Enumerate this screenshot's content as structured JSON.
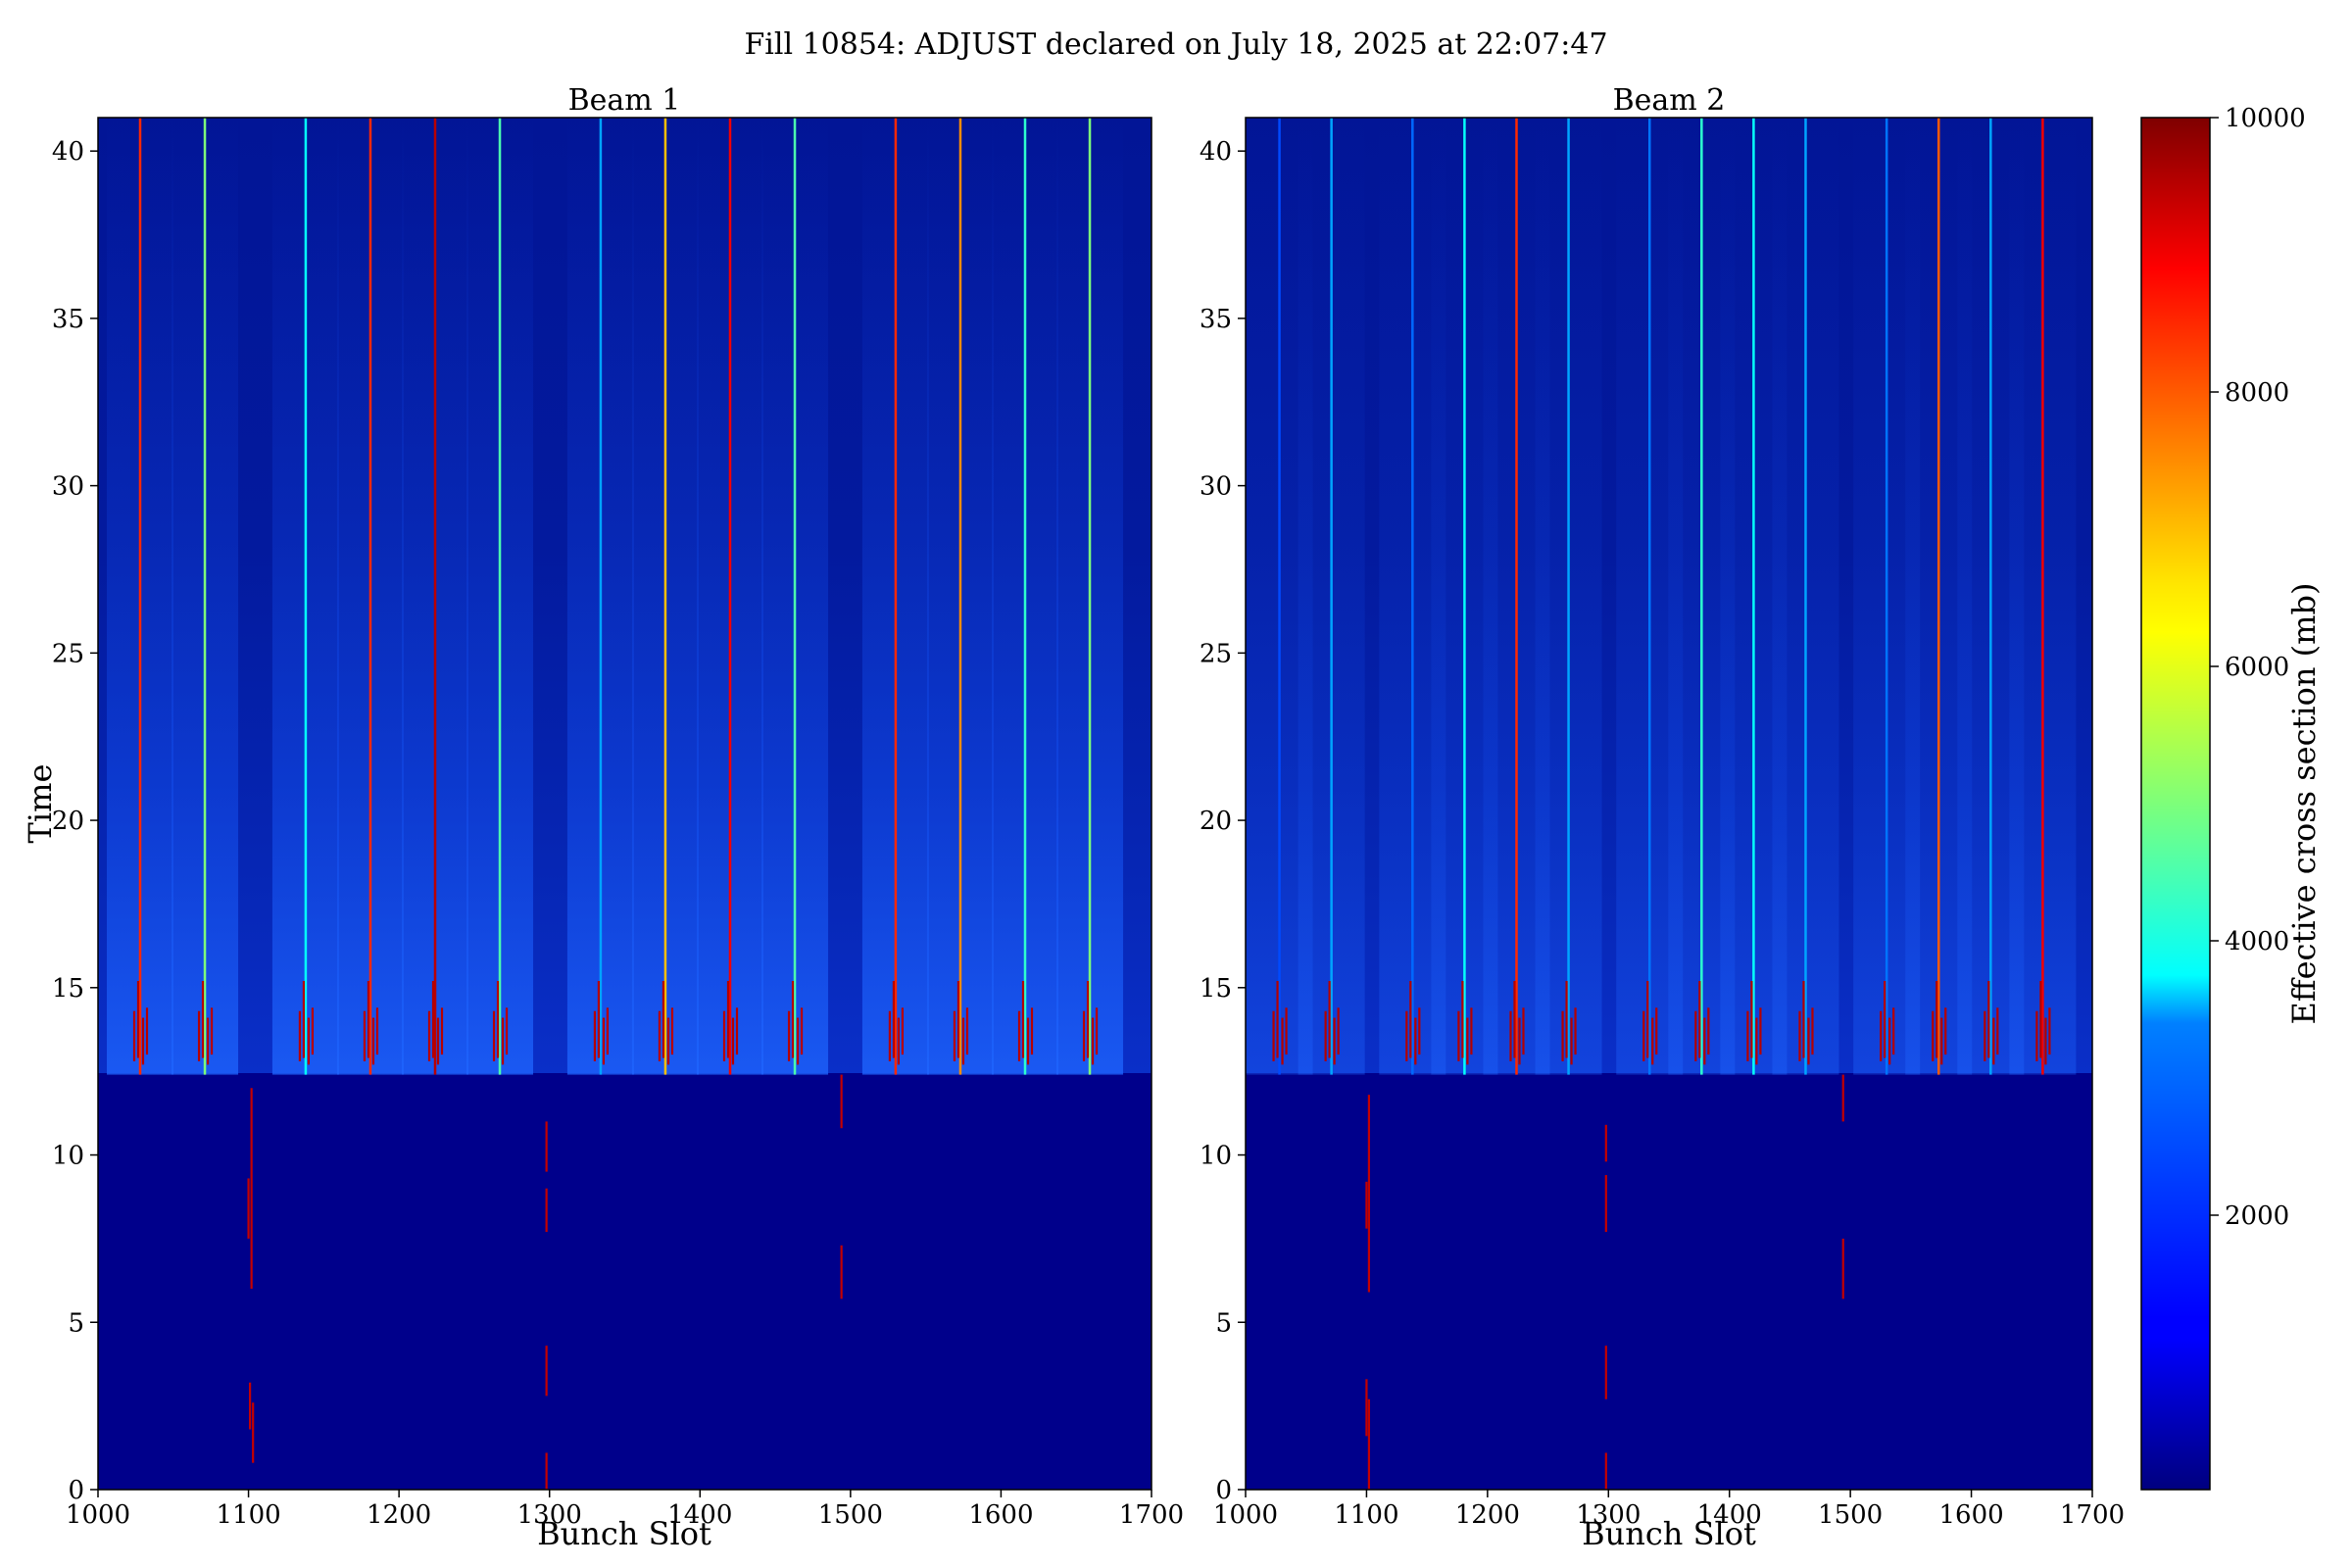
{
  "figure_title": "Fill 10854: ADJUST declared on July 18, 2025 at 22:07:47",
  "colormap": "jet",
  "colors": {
    "background_low": "#00008b",
    "beam_region": "#0a2fc8",
    "hot": "#b50000"
  },
  "chart_data": [
    {
      "type": "heatmap",
      "title": "Beam 1",
      "xlabel": "Bunch Slot",
      "ylabel": "Time",
      "xlim": [
        1000,
        1700
      ],
      "ylim": [
        0,
        41
      ],
      "xticks": [
        1000,
        1100,
        1200,
        1300,
        1400,
        1500,
        1600,
        1700
      ],
      "yticks": [
        0,
        5,
        10,
        15,
        20,
        25,
        30,
        35,
        40
      ],
      "transition_time": 12.4,
      "bright_lines": [
        {
          "x": 1028,
          "value": 8500
        },
        {
          "x": 1071,
          "value": 5000
        },
        {
          "x": 1138,
          "value": 3800
        },
        {
          "x": 1181,
          "value": 8500
        },
        {
          "x": 1224,
          "value": 9500
        },
        {
          "x": 1267,
          "value": 4500
        },
        {
          "x": 1334,
          "value": 3500
        },
        {
          "x": 1377,
          "value": 7000
        },
        {
          "x": 1420,
          "value": 9000
        },
        {
          "x": 1463,
          "value": 4500
        },
        {
          "x": 1530,
          "value": 8500
        },
        {
          "x": 1573,
          "value": 7500
        },
        {
          "x": 1616,
          "value": 4200
        },
        {
          "x": 1659,
          "value": 5000
        }
      ],
      "early_spikes": [
        {
          "x": 1100,
          "t0": 7.5,
          "t1": 9.3
        },
        {
          "x": 1102,
          "t0": 6.0,
          "t1": 12.0
        },
        {
          "x": 1101,
          "t0": 1.8,
          "t1": 3.2
        },
        {
          "x": 1103,
          "t0": 0.8,
          "t1": 2.6
        },
        {
          "x": 1298,
          "t0": 9.5,
          "t1": 11.0
        },
        {
          "x": 1298,
          "t0": 7.7,
          "t1": 9.0
        },
        {
          "x": 1298,
          "t0": 2.8,
          "t1": 4.3
        },
        {
          "x": 1298,
          "t0": 0.0,
          "t1": 1.1
        },
        {
          "x": 1494,
          "t0": 10.8,
          "t1": 12.4
        },
        {
          "x": 1494,
          "t0": 5.7,
          "t1": 7.3
        }
      ]
    },
    {
      "type": "heatmap",
      "title": "Beam 2",
      "xlabel": "Bunch Slot",
      "ylabel": "",
      "xlim": [
        1000,
        1700
      ],
      "ylim": [
        0,
        41
      ],
      "xticks": [
        1000,
        1100,
        1200,
        1300,
        1400,
        1500,
        1600,
        1700
      ],
      "yticks": [
        0,
        5,
        10,
        15,
        20,
        25,
        30,
        35,
        40
      ],
      "transition_time": 12.4,
      "bright_lines": [
        {
          "x": 1028,
          "value": 2500
        },
        {
          "x": 1071,
          "value": 3500
        },
        {
          "x": 1138,
          "value": 3000
        },
        {
          "x": 1181,
          "value": 3800
        },
        {
          "x": 1224,
          "value": 8500
        },
        {
          "x": 1267,
          "value": 3500
        },
        {
          "x": 1334,
          "value": 3200
        },
        {
          "x": 1377,
          "value": 4200
        },
        {
          "x": 1420,
          "value": 3800
        },
        {
          "x": 1463,
          "value": 3500
        },
        {
          "x": 1530,
          "value": 3200
        },
        {
          "x": 1573,
          "value": 8000
        },
        {
          "x": 1616,
          "value": 3500
        },
        {
          "x": 1659,
          "value": 9000
        }
      ],
      "early_spikes": [
        {
          "x": 1100,
          "t0": 7.8,
          "t1": 9.2
        },
        {
          "x": 1102,
          "t0": 5.9,
          "t1": 11.8
        },
        {
          "x": 1100,
          "t0": 1.6,
          "t1": 3.3
        },
        {
          "x": 1102,
          "t0": 0.0,
          "t1": 2.7
        },
        {
          "x": 1298,
          "t0": 9.8,
          "t1": 10.9
        },
        {
          "x": 1298,
          "t0": 7.7,
          "t1": 9.4
        },
        {
          "x": 1298,
          "t0": 2.7,
          "t1": 4.3
        },
        {
          "x": 1298,
          "t0": 0.0,
          "t1": 1.1
        },
        {
          "x": 1494,
          "t0": 11.0,
          "t1": 12.4
        },
        {
          "x": 1494,
          "t0": 5.7,
          "t1": 7.5
        }
      ]
    }
  ],
  "colorbar": {
    "label": "Effective cross section (mb)",
    "min": 0,
    "max": 10000,
    "ticks": [
      2000,
      4000,
      6000,
      8000,
      10000
    ]
  }
}
